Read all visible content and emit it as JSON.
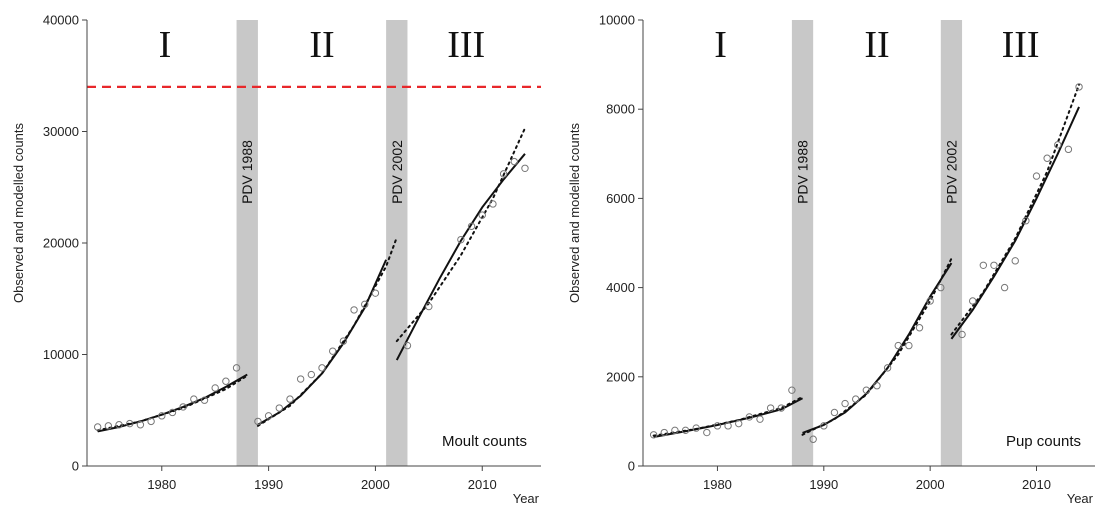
{
  "chart_data": [
    {
      "type": "scatter",
      "panel_label": "Moult counts",
      "ylabel": "Observed and modelled counts",
      "xlabel": "Year",
      "xlim": [
        1973,
        2015.5
      ],
      "ylim": [
        0,
        40000
      ],
      "x_ticks": [
        1980,
        1990,
        2000,
        2010
      ],
      "y_ticks": [
        0,
        10000,
        20000,
        30000,
        40000
      ],
      "grid": false,
      "periods": [
        {
          "label": "I",
          "x": 1980.3
        },
        {
          "label": "II",
          "x": 1995
        },
        {
          "label": "III",
          "x": 2008.5
        }
      ],
      "bands": [
        {
          "label": "PDV 1988",
          "from": 1987,
          "to": 1989
        },
        {
          "label": "PDV 2002",
          "from": 2001,
          "to": 2003
        }
      ],
      "reference_line": {
        "y": 34000,
        "color": "#e8282b",
        "style": "dashed"
      },
      "observed": [
        [
          1974,
          3500
        ],
        [
          1975,
          3600
        ],
        [
          1976,
          3700
        ],
        [
          1977,
          3800
        ],
        [
          1978,
          3700
        ],
        [
          1979,
          4000
        ],
        [
          1980,
          4500
        ],
        [
          1981,
          4800
        ],
        [
          1982,
          5300
        ],
        [
          1983,
          6000
        ],
        [
          1984,
          5900
        ],
        [
          1985,
          7000
        ],
        [
          1986,
          7600
        ],
        [
          1987,
          8800
        ],
        [
          1989,
          4000
        ],
        [
          1990,
          4500
        ],
        [
          1991,
          5200
        ],
        [
          1992,
          6000
        ],
        [
          1993,
          7800
        ],
        [
          1994,
          8200
        ],
        [
          1995,
          8800
        ],
        [
          1996,
          10300
        ],
        [
          1997,
          11200
        ],
        [
          1998,
          14000
        ],
        [
          1999,
          14500
        ],
        [
          2000,
          15500
        ],
        [
          2003,
          10800
        ],
        [
          2005,
          14300
        ],
        [
          2008,
          20300
        ],
        [
          2009,
          21500
        ],
        [
          2010,
          22500
        ],
        [
          2011,
          23500
        ],
        [
          2012,
          26200
        ],
        [
          2013,
          27300
        ],
        [
          2014,
          26700
        ]
      ],
      "model_solid": [
        [
          [
            1974,
            3100
          ],
          [
            1976,
            3500
          ],
          [
            1978,
            4000
          ],
          [
            1980,
            4600
          ],
          [
            1982,
            5300
          ],
          [
            1984,
            6100
          ],
          [
            1986,
            7100
          ],
          [
            1988,
            8200
          ]
        ],
        [
          [
            1989,
            3700
          ],
          [
            1991,
            4800
          ],
          [
            1993,
            6300
          ],
          [
            1995,
            8300
          ],
          [
            1997,
            11000
          ],
          [
            1999,
            14200
          ],
          [
            2001,
            18500
          ]
        ],
        [
          [
            2002,
            9500
          ],
          [
            2004,
            13200
          ],
          [
            2006,
            16800
          ],
          [
            2008,
            20200
          ],
          [
            2010,
            23200
          ],
          [
            2012,
            25700
          ],
          [
            2014,
            28000
          ]
        ]
      ],
      "model_dotted": [
        [
          [
            1974,
            3200
          ],
          [
            1978,
            4000
          ],
          [
            1982,
            5200
          ],
          [
            1986,
            6900
          ],
          [
            1988,
            8100
          ]
        ],
        [
          [
            1989,
            3600
          ],
          [
            1992,
            5400
          ],
          [
            1995,
            8300
          ],
          [
            1998,
            12600
          ],
          [
            2001,
            17900
          ],
          [
            2002,
            20500
          ]
        ],
        [
          [
            2002,
            11200
          ],
          [
            2005,
            14600
          ],
          [
            2008,
            18900
          ],
          [
            2011,
            24000
          ],
          [
            2014,
            30300
          ]
        ]
      ]
    },
    {
      "type": "scatter",
      "panel_label": "Pup counts",
      "ylabel": "Observed and modelled counts",
      "xlabel": "Year",
      "xlim": [
        1973,
        2015.5
      ],
      "ylim": [
        0,
        10000
      ],
      "x_ticks": [
        1980,
        1990,
        2000,
        2010
      ],
      "y_ticks": [
        0,
        2000,
        4000,
        6000,
        8000,
        10000
      ],
      "grid": false,
      "periods": [
        {
          "label": "I",
          "x": 1980.3
        },
        {
          "label": "II",
          "x": 1995
        },
        {
          "label": "III",
          "x": 2008.5
        }
      ],
      "bands": [
        {
          "label": "PDV 1988",
          "from": 1987,
          "to": 1989
        },
        {
          "label": "PDV 2002",
          "from": 2001,
          "to": 2003
        }
      ],
      "observed": [
        [
          1974,
          700
        ],
        [
          1975,
          750
        ],
        [
          1976,
          800
        ],
        [
          1977,
          800
        ],
        [
          1978,
          850
        ],
        [
          1979,
          750
        ],
        [
          1980,
          900
        ],
        [
          1981,
          900
        ],
        [
          1982,
          950
        ],
        [
          1983,
          1100
        ],
        [
          1984,
          1050
        ],
        [
          1985,
          1300
        ],
        [
          1986,
          1300
        ],
        [
          1987,
          1700
        ],
        [
          1989,
          600
        ],
        [
          1990,
          900
        ],
        [
          1991,
          1200
        ],
        [
          1992,
          1400
        ],
        [
          1993,
          1500
        ],
        [
          1994,
          1700
        ],
        [
          1995,
          1800
        ],
        [
          1996,
          2200
        ],
        [
          1997,
          2700
        ],
        [
          1998,
          2700
        ],
        [
          1999,
          3100
        ],
        [
          2000,
          3700
        ],
        [
          2001,
          4000
        ],
        [
          2003,
          2950
        ],
        [
          2004,
          3700
        ],
        [
          2005,
          4500
        ],
        [
          2006,
          4500
        ],
        [
          2007,
          4000
        ],
        [
          2008,
          4600
        ],
        [
          2009,
          5500
        ],
        [
          2010,
          6500
        ],
        [
          2011,
          6900
        ],
        [
          2012,
          7200
        ],
        [
          2013,
          7100
        ],
        [
          2014,
          8500
        ]
      ],
      "model_solid": [
        [
          [
            1974,
            650
          ],
          [
            1977,
            780
          ],
          [
            1980,
            920
          ],
          [
            1983,
            1080
          ],
          [
            1986,
            1270
          ],
          [
            1988,
            1520
          ]
        ],
        [
          [
            1988,
            740
          ],
          [
            1990,
            920
          ],
          [
            1992,
            1200
          ],
          [
            1994,
            1620
          ],
          [
            1996,
            2200
          ],
          [
            1998,
            2950
          ],
          [
            2000,
            3800
          ],
          [
            2002,
            4550
          ]
        ],
        [
          [
            2002,
            2850
          ],
          [
            2004,
            3500
          ],
          [
            2006,
            4250
          ],
          [
            2008,
            5050
          ],
          [
            2010,
            6000
          ],
          [
            2012,
            7000
          ],
          [
            2014,
            8050
          ]
        ]
      ],
      "model_dotted": [
        [
          [
            1974,
            680
          ],
          [
            1978,
            830
          ],
          [
            1982,
            1030
          ],
          [
            1986,
            1300
          ],
          [
            1988,
            1550
          ]
        ],
        [
          [
            1988,
            700
          ],
          [
            1991,
            1050
          ],
          [
            1994,
            1600
          ],
          [
            1997,
            2500
          ],
          [
            2000,
            3700
          ],
          [
            2002,
            4650
          ]
        ],
        [
          [
            2002,
            2950
          ],
          [
            2005,
            3900
          ],
          [
            2008,
            5100
          ],
          [
            2011,
            6600
          ],
          [
            2014,
            8550
          ]
        ]
      ]
    }
  ]
}
